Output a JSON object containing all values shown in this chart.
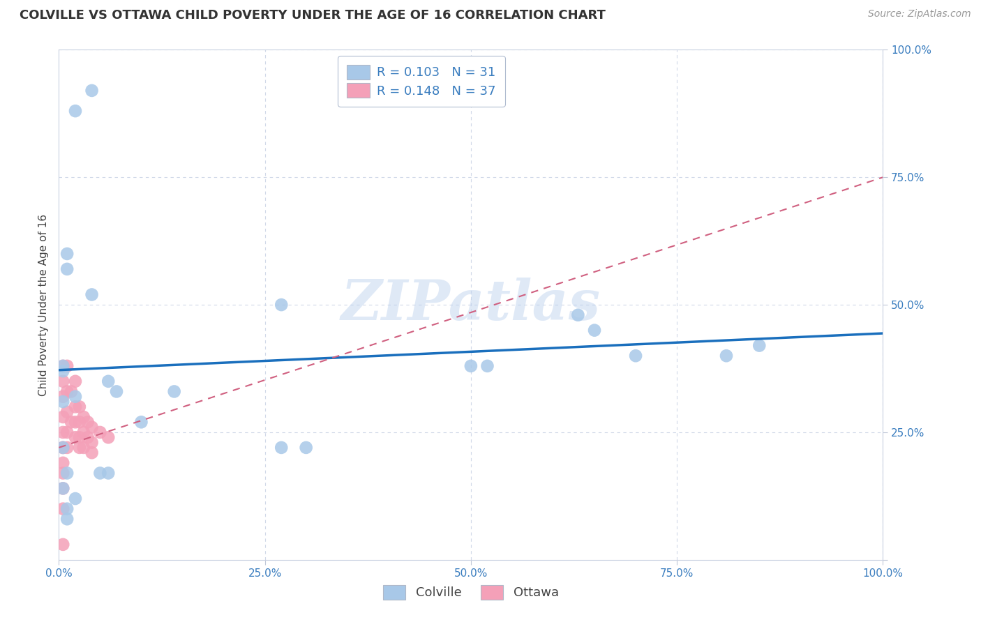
{
  "title": "COLVILLE VS OTTAWA CHILD POVERTY UNDER THE AGE OF 16 CORRELATION CHART",
  "source": "Source: ZipAtlas.com",
  "ylabel": "Child Poverty Under the Age of 16",
  "xticks": [
    0.0,
    0.25,
    0.5,
    0.75,
    1.0
  ],
  "yticks": [
    0.0,
    0.25,
    0.5,
    0.75,
    1.0
  ],
  "xticklabels": [
    "0.0%",
    "25.0%",
    "50.0%",
    "75.0%",
    "100.0%"
  ],
  "yticklabels": [
    "",
    "25.0%",
    "50.0%",
    "75.0%",
    "100.0%"
  ],
  "colville_color": "#a8c8e8",
  "ottawa_color": "#f4a0b8",
  "colville_line_color": "#1a6fbd",
  "ottawa_line_color": "#d06080",
  "colville_R": 0.103,
  "colville_N": 31,
  "ottawa_R": 0.148,
  "ottawa_N": 37,
  "watermark": "ZIPatlas",
  "colville_x": [
    0.02,
    0.04,
    0.01,
    0.01,
    0.005,
    0.005,
    0.04,
    0.06,
    0.1,
    0.14,
    0.07,
    0.27,
    0.27,
    0.5,
    0.52,
    0.63,
    0.65,
    0.7,
    0.81,
    0.85,
    0.02,
    0.005,
    0.005,
    0.01,
    0.05,
    0.06,
    0.02,
    0.005,
    0.01,
    0.3,
    0.01
  ],
  "colville_y": [
    0.88,
    0.92,
    0.6,
    0.57,
    0.37,
    0.38,
    0.52,
    0.35,
    0.27,
    0.33,
    0.33,
    0.22,
    0.5,
    0.38,
    0.38,
    0.48,
    0.45,
    0.4,
    0.4,
    0.42,
    0.32,
    0.31,
    0.22,
    0.17,
    0.17,
    0.17,
    0.12,
    0.14,
    0.08,
    0.22,
    0.1
  ],
  "ottawa_x": [
    0.005,
    0.005,
    0.005,
    0.005,
    0.005,
    0.005,
    0.005,
    0.005,
    0.01,
    0.01,
    0.01,
    0.01,
    0.01,
    0.015,
    0.015,
    0.02,
    0.02,
    0.02,
    0.02,
    0.025,
    0.025,
    0.025,
    0.025,
    0.03,
    0.03,
    0.03,
    0.035,
    0.035,
    0.04,
    0.04,
    0.04,
    0.05,
    0.06,
    0.005,
    0.005,
    0.005,
    0.005
  ],
  "ottawa_y": [
    0.38,
    0.35,
    0.32,
    0.28,
    0.25,
    0.22,
    0.19,
    0.22,
    0.38,
    0.33,
    0.29,
    0.25,
    0.22,
    0.33,
    0.27,
    0.35,
    0.3,
    0.27,
    0.24,
    0.3,
    0.27,
    0.24,
    0.22,
    0.28,
    0.25,
    0.22,
    0.27,
    0.24,
    0.26,
    0.23,
    0.21,
    0.25,
    0.24,
    0.17,
    0.14,
    0.1,
    0.03
  ],
  "background_color": "#ffffff",
  "grid_color": "#d0d8e8",
  "spine_color": "#c8d0e0",
  "colville_intercept": 0.372,
  "colville_slope": 0.072,
  "ottawa_intercept": 0.22,
  "ottawa_slope": 0.53
}
